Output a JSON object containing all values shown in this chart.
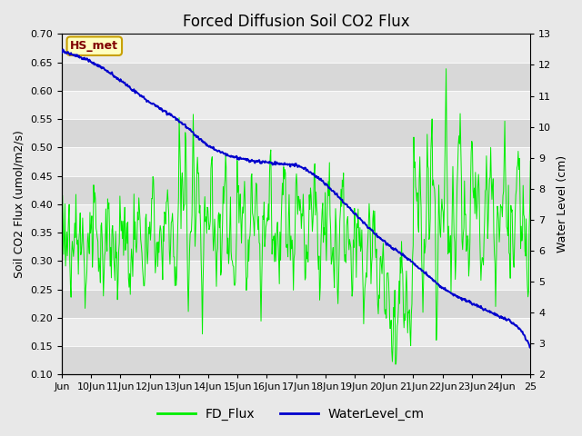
{
  "title": "Forced Diffusion Soil CO2 Flux",
  "ylabel_left": "Soil CO2 Flux (umol/m2/s)",
  "ylabel_right": "Water Level (cm)",
  "ylim_left": [
    0.1,
    0.7
  ],
  "ylim_right": [
    2.0,
    13.0
  ],
  "yticks_left": [
    0.1,
    0.15,
    0.2,
    0.25,
    0.3,
    0.35,
    0.4,
    0.45,
    0.5,
    0.55,
    0.6,
    0.65,
    0.7
  ],
  "yticks_right": [
    2.0,
    3.0,
    4.0,
    5.0,
    6.0,
    7.0,
    8.0,
    9.0,
    10.0,
    11.0,
    12.0,
    13.0
  ],
  "plot_bg_color": "#e0e0e0",
  "band_light_color": "#ebebeb",
  "band_dark_color": "#d8d8d8",
  "fd_flux_color": "#00ee00",
  "water_level_color": "#0000cc",
  "legend_fd": "FD_Flux",
  "legend_wl": "WaterLevel_cm",
  "annotation_text": "HS_met",
  "annotation_bg": "#ffffc0",
  "annotation_border": "#c8a000",
  "annotation_text_color": "#800000",
  "title_fontsize": 12,
  "axis_label_fontsize": 9,
  "tick_fontsize": 8,
  "legend_fontsize": 10,
  "xtick_labels": [
    "Jun",
    "10Jun",
    "11Jun",
    "12Jun",
    "13Jun",
    "14Jun",
    "15Jun",
    "16Jun",
    "17Jun",
    "18Jun",
    "19Jun",
    "20Jun",
    "21Jun",
    "22Jun",
    "23Jun",
    "24Jun",
    "25"
  ],
  "figsize": [
    6.4,
    4.8
  ],
  "dpi": 100
}
